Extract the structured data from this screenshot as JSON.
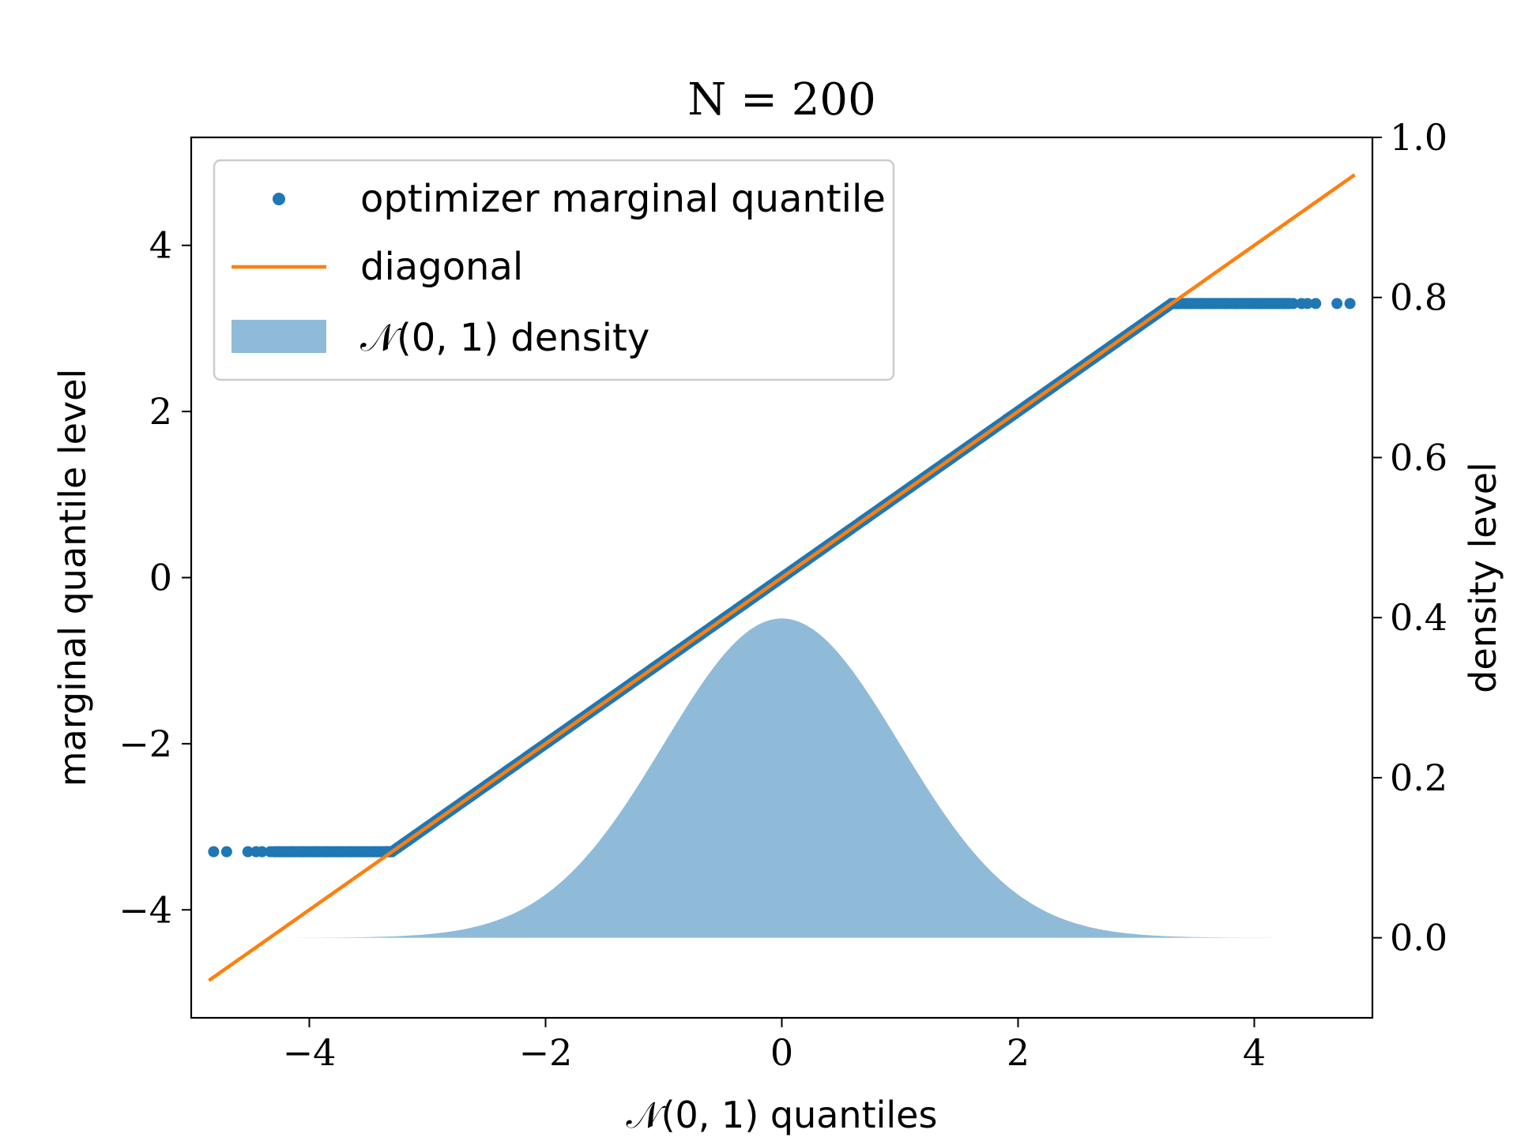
{
  "chart_data": {
    "type": "scatter",
    "title": "N = 200",
    "xlabel": "𝒩(0, 1) quantiles",
    "ylabel": "marginal quantile level",
    "y2label": "density level",
    "xlim": [
      -5.0,
      5.0
    ],
    "ylim": [
      -5.3,
      5.3
    ],
    "y2lim": [
      -0.1,
      1.0
    ],
    "xticks": [
      -4,
      -2,
      0,
      2,
      4
    ],
    "xtick_labels": [
      "−4",
      "−2",
      "0",
      "2",
      "4"
    ],
    "yticks": [
      -4,
      -2,
      0,
      2,
      4
    ],
    "ytick_labels": [
      "−4",
      "−2",
      "0",
      "2",
      "4"
    ],
    "y2ticks": [
      0.0,
      0.2,
      0.4,
      0.6,
      0.8,
      1.0
    ],
    "y2tick_labels": [
      "0.0",
      "0.2",
      "0.4",
      "0.6",
      "0.8",
      "1.0"
    ],
    "grid": false,
    "legend_position": "top-left",
    "series": [
      {
        "name": "optimizer marginal quantile",
        "kind": "points",
        "color": "#1f77b4",
        "description_of_shape": "points along y = x, clipped at ±3.3",
        "clip": [
          -3.3,
          3.3
        ],
        "x": [
          -4.81,
          -4.7,
          -4.52,
          -4.45,
          -4.4,
          -4.33,
          -4.25,
          -4.15,
          -4.05,
          -3.95,
          -3.85,
          -3.75,
          -3.65,
          -3.55,
          -3.45,
          -3.35,
          -3.25,
          -3.1,
          -2.9,
          -2.7,
          -2.5,
          -2.3,
          -2.1,
          -1.9,
          -1.7,
          -1.5,
          -1.3,
          -1.1,
          -0.9,
          -0.7,
          -0.5,
          -0.3,
          -0.1,
          0.1,
          0.3,
          0.5,
          0.7,
          0.9,
          1.1,
          1.3,
          1.5,
          1.7,
          1.9,
          2.1,
          2.3,
          2.5,
          2.7,
          2.9,
          3.1,
          3.25,
          3.35,
          3.45,
          3.55,
          3.65,
          3.75,
          3.85,
          3.95,
          4.05,
          4.15,
          4.25,
          4.33,
          4.4,
          4.45,
          4.52,
          4.7,
          4.81
        ],
        "y": [
          -3.3,
          -3.3,
          -3.3,
          -3.3,
          -3.3,
          -3.3,
          -3.3,
          -3.3,
          -3.3,
          -3.3,
          -3.3,
          -3.3,
          -3.3,
          -3.3,
          -3.3,
          -3.3,
          -3.25,
          -3.1,
          -2.9,
          -2.7,
          -2.5,
          -2.3,
          -2.1,
          -1.9,
          -1.7,
          -1.5,
          -1.3,
          -1.1,
          -0.9,
          -0.7,
          -0.5,
          -0.3,
          -0.1,
          0.1,
          0.3,
          0.5,
          0.7,
          0.9,
          1.1,
          1.3,
          1.5,
          1.7,
          1.9,
          2.1,
          2.3,
          2.5,
          2.7,
          2.9,
          3.1,
          3.25,
          3.3,
          3.3,
          3.3,
          3.3,
          3.3,
          3.3,
          3.3,
          3.3,
          3.3,
          3.3,
          3.3,
          3.3,
          3.3,
          3.3,
          3.3,
          3.3
        ]
      },
      {
        "name": "diagonal",
        "kind": "line",
        "color": "#ff7f0e",
        "x": [
          -4.85,
          4.85
        ],
        "y": [
          -4.85,
          4.85
        ]
      },
      {
        "name": "𝒩(0, 1) density",
        "kind": "area",
        "axis": "y2",
        "color": "#1f77b4",
        "alpha": 0.5,
        "x_range": [
          -4.1,
          4.3
        ],
        "function": "standard normal pdf"
      }
    ]
  }
}
